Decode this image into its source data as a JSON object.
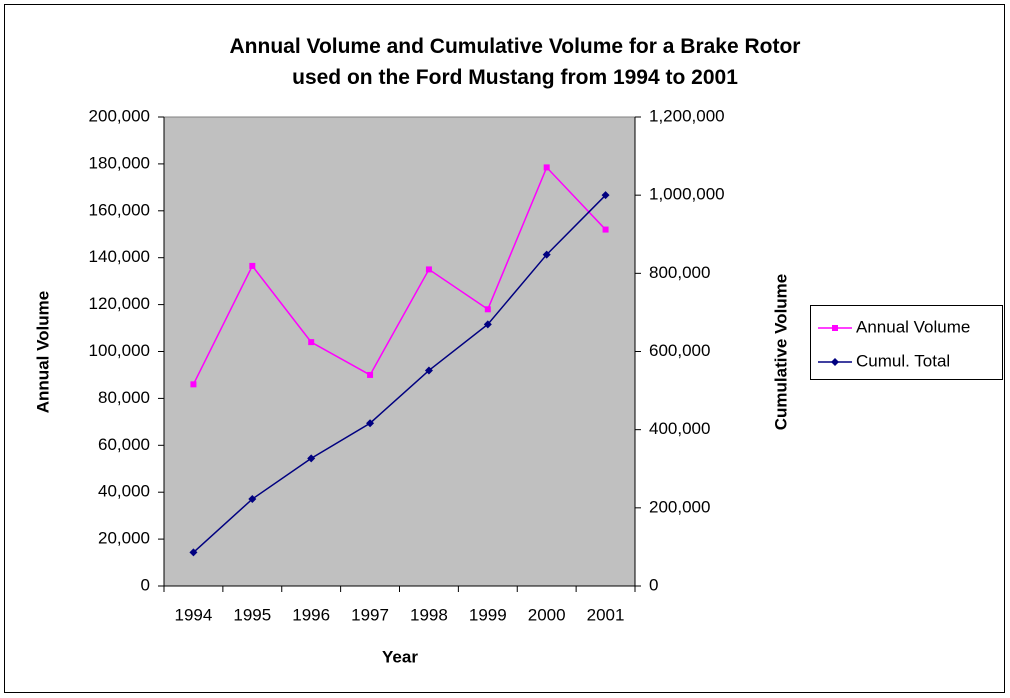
{
  "chart_data": {
    "type": "line",
    "title": "Annual Volume and Cumulative Volume for a Brake Rotor used on the Ford Mustang from 1994 to 2001",
    "x_label": "Year",
    "y_label": "Annual Volume",
    "y2_label": "Cumulative Volume",
    "categories": [
      "1994",
      "1995",
      "1996",
      "1997",
      "1998",
      "1999",
      "2000",
      "2001"
    ],
    "series": [
      {
        "name": "Annual Volume",
        "color": "#ff00ff",
        "marker": "square",
        "values": [
          86000,
          136500,
          104000,
          90000,
          135000,
          118000,
          178500,
          152000
        ]
      },
      {
        "name": "Cumul. Total",
        "color": "#000080",
        "marker": "diamond",
        "axis": "y2",
        "values": [
          86000,
          222500,
          326500,
          416500,
          551500,
          669500,
          848000,
          1000000
        ]
      }
    ],
    "ylim": [
      0,
      200000
    ],
    "yticks": [
      0,
      {
        "value": 20000,
        "label": "20,000"
      },
      {
        "value": 40000,
        "label": "40,000"
      },
      {
        "value": 60000,
        "label": "60,000"
      },
      {
        "value": 80000,
        "label": "80,000"
      },
      {
        "value": 100000,
        "label": "100,000"
      },
      {
        "value": 120000,
        "label": "120,000"
      },
      {
        "value": 140000,
        "label": "140,000"
      },
      {
        "value": 160000,
        "label": "160,000"
      },
      {
        "value": 180000,
        "label": "180,000"
      },
      {
        "value": 200000,
        "label": "200,000"
      }
    ],
    "y2lim": [
      0,
      1200000
    ],
    "y2ticks": [
      0,
      {
        "value": 200000,
        "label": "200,000"
      },
      {
        "value": 400000,
        "label": "400,000"
      },
      {
        "value": 600000,
        "label": "600,000"
      },
      {
        "value": 800000,
        "label": "800,000"
      },
      {
        "value": 1000000,
        "label": "1,000,000"
      },
      {
        "value": 1200000,
        "label": "1,200,000"
      }
    ],
    "plot_background": "#c0c0c0",
    "grid": false,
    "legend": "right"
  }
}
